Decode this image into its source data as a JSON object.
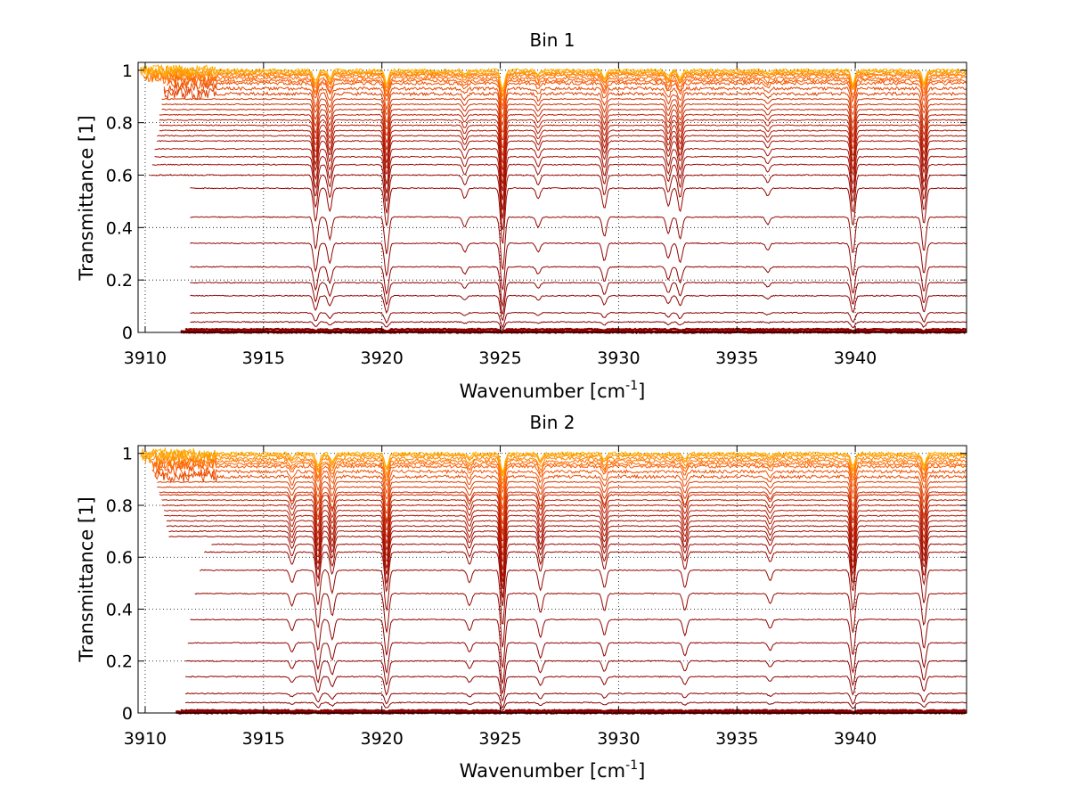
{
  "chart_data": [
    {
      "type": "line",
      "title": "Bin 1",
      "xlabel": "Wavenumber [cm",
      "xlabel_sup": "-1",
      "xlabel_end": "]",
      "ylabel": "Transmittance [1]",
      "xlim": [
        3909.7,
        3944.7
      ],
      "ylim": [
        0,
        1.03
      ],
      "xticks": [
        3910,
        3915,
        3920,
        3925,
        3930,
        3935,
        3940
      ],
      "yticks": [
        0,
        0.2,
        0.4,
        0.6,
        0.8,
        1
      ],
      "ytick_labels": [
        "0",
        "0.2",
        "0.4",
        "0.6",
        "0.8",
        "1"
      ],
      "grid": true,
      "series_colors": [
        "#8b0000",
        "#c02000",
        "#ff6000",
        "#ffb000"
      ],
      "baselines": [
        0.0,
        0.005,
        0.012,
        0.04,
        0.075,
        0.14,
        0.19,
        0.25,
        0.34,
        0.44,
        0.55,
        0.6,
        0.64,
        0.67,
        0.7,
        0.73,
        0.75,
        0.77,
        0.79,
        0.81,
        0.83,
        0.85,
        0.87,
        0.89,
        0.91,
        0.93,
        0.95,
        0.96,
        0.97,
        0.98,
        0.985,
        0.99,
        0.995,
        1.0
      ],
      "starts": [
        3911.5,
        3911.5,
        3911.7,
        3911.9,
        3911.9,
        3911.9,
        3911.9,
        3911.9,
        3911.9,
        3911.9,
        3911.9,
        3910.2,
        3910.3,
        3910.4,
        3910.4,
        3910.5,
        3910.5,
        3910.6,
        3910.6,
        3910.6,
        3910.6,
        3910.7,
        3910.7,
        3910.7,
        3910.8,
        3910.8,
        3910.9,
        3910.9,
        3910.0,
        3910.0,
        3909.9,
        3909.9,
        3909.8,
        3909.8
      ],
      "lines": [
        {
          "x": 3917.2,
          "d": 0.13
        },
        {
          "x": 3917.8,
          "d": 0.09
        },
        {
          "x": 3920.2,
          "d": 0.15
        },
        {
          "x": 3923.5,
          "d": 0.04
        },
        {
          "x": 3925.1,
          "d": 0.22
        },
        {
          "x": 3926.6,
          "d": 0.04
        },
        {
          "x": 3929.4,
          "d": 0.08
        },
        {
          "x": 3932.1,
          "d": 0.07
        },
        {
          "x": 3932.6,
          "d": 0.09
        },
        {
          "x": 3936.3,
          "d": 0.03
        },
        {
          "x": 3939.9,
          "d": 0.15
        },
        {
          "x": 3942.9,
          "d": 0.14
        }
      ]
    },
    {
      "type": "line",
      "title": "Bin 2",
      "xlabel": "Wavenumber [cm",
      "xlabel_sup": "-1",
      "xlabel_end": "]",
      "ylabel": "Transmittance [1]",
      "xlim": [
        3909.7,
        3944.7
      ],
      "ylim": [
        0,
        1.03
      ],
      "xticks": [
        3910,
        3915,
        3920,
        3925,
        3930,
        3935,
        3940
      ],
      "yticks": [
        0,
        0.2,
        0.4,
        0.6,
        0.8,
        1
      ],
      "ytick_labels": [
        "0",
        "0.2",
        "0.4",
        "0.6",
        "0.8",
        "1"
      ],
      "grid": true,
      "series_colors": [
        "#8b0000",
        "#c02000",
        "#ff6000",
        "#ffb000"
      ],
      "baselines": [
        0.0,
        0.005,
        0.01,
        0.04,
        0.075,
        0.14,
        0.2,
        0.27,
        0.36,
        0.46,
        0.55,
        0.62,
        0.65,
        0.68,
        0.7,
        0.72,
        0.74,
        0.76,
        0.78,
        0.8,
        0.82,
        0.84,
        0.85,
        0.87,
        0.89,
        0.91,
        0.93,
        0.95,
        0.96,
        0.97,
        0.98,
        0.99,
        0.995,
        1.0
      ],
      "starts": [
        3911.3,
        3911.3,
        3911.5,
        3911.7,
        3911.7,
        3911.7,
        3911.7,
        3911.8,
        3911.9,
        3912.1,
        3912.3,
        3912.5,
        3912.8,
        3911.0,
        3911.0,
        3910.9,
        3910.9,
        3910.8,
        3910.8,
        3910.7,
        3910.7,
        3910.6,
        3910.6,
        3910.5,
        3910.5,
        3910.4,
        3910.4,
        3910.3,
        3910.3,
        3910.2,
        3910.0,
        3909.9,
        3909.8,
        3909.8
      ],
      "lines": [
        {
          "x": 3916.2,
          "d": 0.05
        },
        {
          "x": 3917.3,
          "d": 0.14
        },
        {
          "x": 3917.9,
          "d": 0.09
        },
        {
          "x": 3920.2,
          "d": 0.16
        },
        {
          "x": 3923.7,
          "d": 0.05
        },
        {
          "x": 3925.1,
          "d": 0.22
        },
        {
          "x": 3926.7,
          "d": 0.08
        },
        {
          "x": 3929.4,
          "d": 0.07
        },
        {
          "x": 3932.8,
          "d": 0.07
        },
        {
          "x": 3936.4,
          "d": 0.04
        },
        {
          "x": 3939.9,
          "d": 0.16
        },
        {
          "x": 3942.9,
          "d": 0.13
        }
      ]
    }
  ]
}
